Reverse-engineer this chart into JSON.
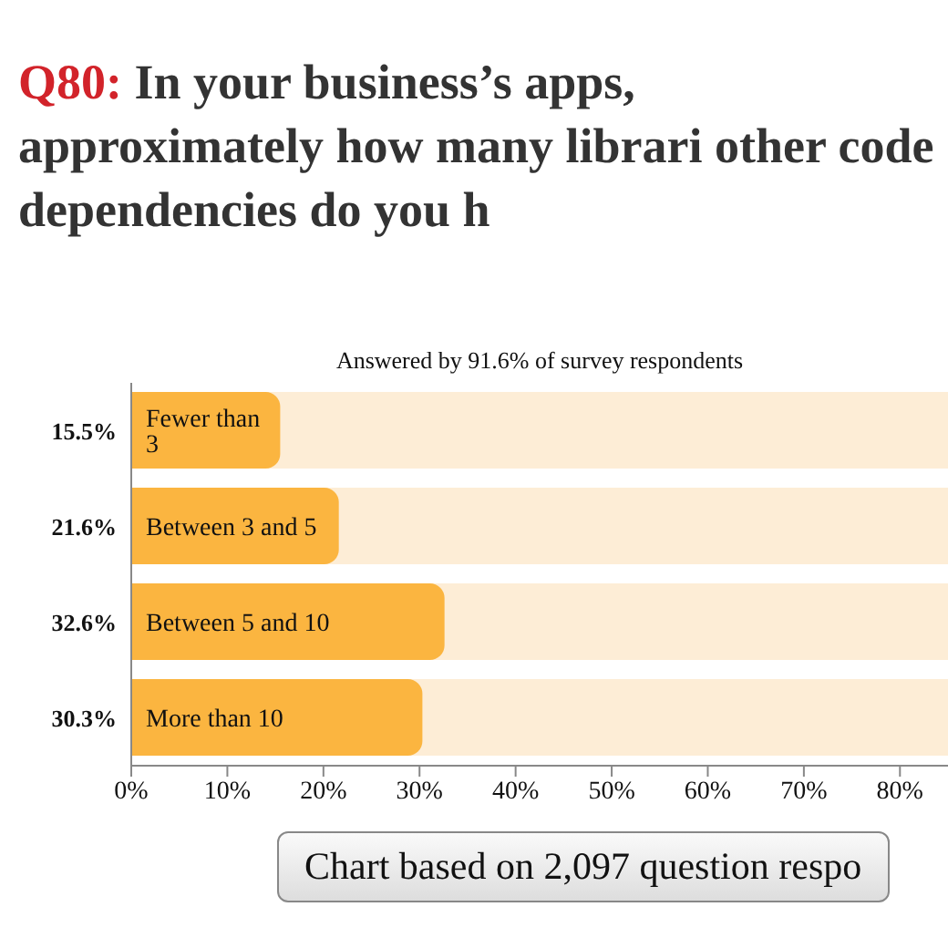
{
  "chart_data": {
    "type": "bar",
    "orientation": "horizontal",
    "title": "Q80: In your business’s apps, approximately how many librari other code dependencies do you h",
    "subtitle": "Answered by 91.6% of survey respondents",
    "annotations": [
      "Chart based on 2,097 question respo"
    ],
    "categories": [
      "Fewer than 3",
      "Between 3 and 5",
      "Between 5 and 10",
      "More than 10"
    ],
    "values": [
      15.5,
      21.6,
      32.6,
      30.3
    ],
    "value_labels": [
      "15.5%",
      "21.6%",
      "32.6%",
      "30.3%"
    ],
    "color": "#fbb540",
    "xlim": [
      0,
      85
    ],
    "xticks": [
      {
        "value": 0,
        "label": "0%"
      },
      {
        "value": 10,
        "label": "10%"
      },
      {
        "value": 20,
        "label": "20%"
      },
      {
        "value": 30,
        "label": "30%"
      },
      {
        "value": 40,
        "label": "40%"
      },
      {
        "value": 50,
        "label": "50%"
      },
      {
        "value": 60,
        "label": "60%"
      },
      {
        "value": 70,
        "label": "70%"
      },
      {
        "value": 80,
        "label": "80%"
      }
    ],
    "grid": false,
    "legend": false
  }
}
